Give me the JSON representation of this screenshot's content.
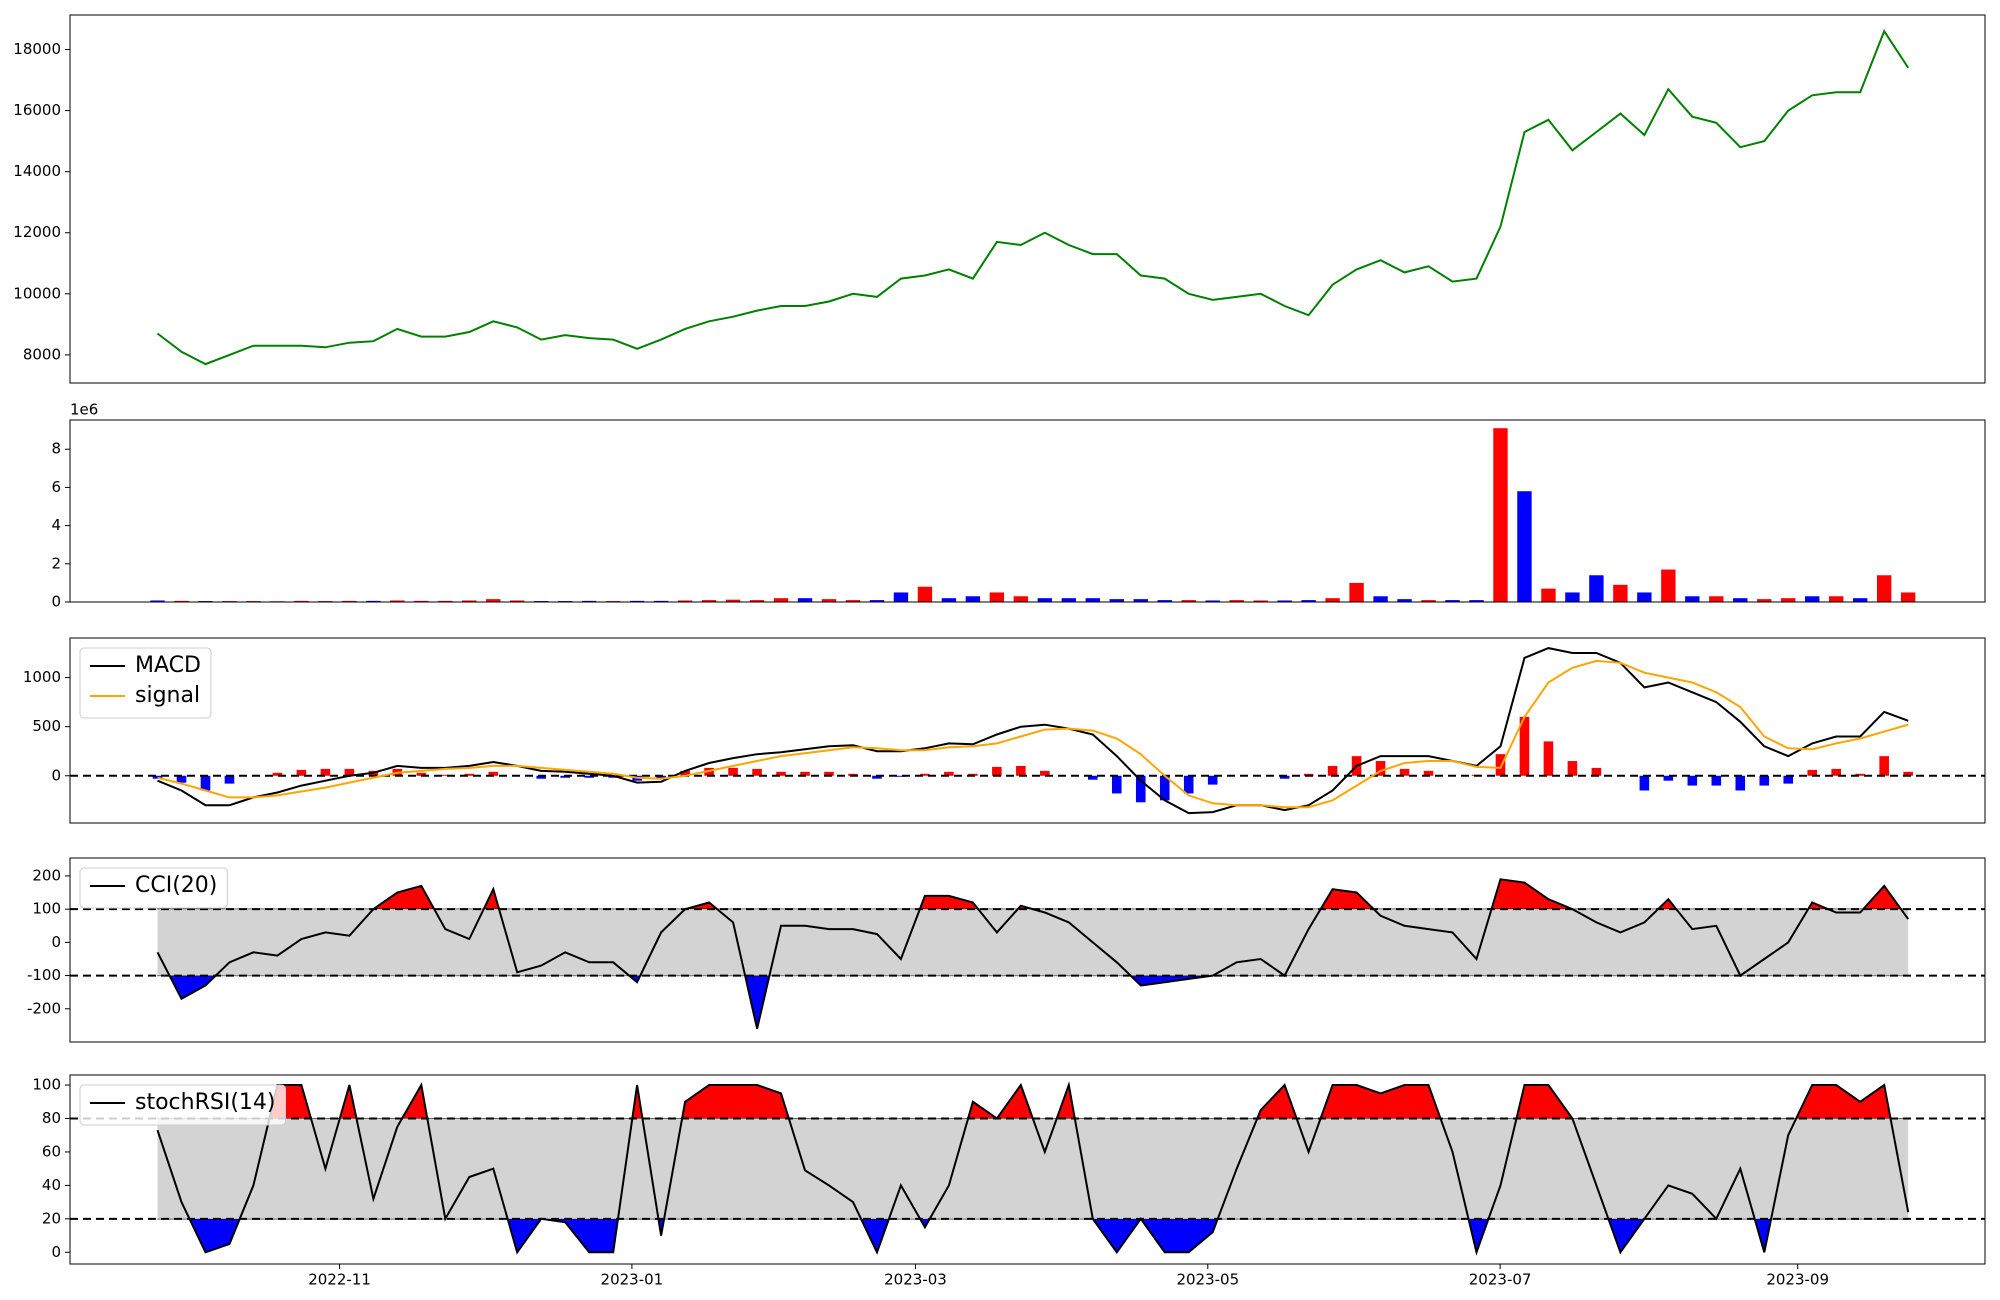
{
  "chart_data": [
    {
      "type": "line",
      "series": [
        {
          "color": "#008000",
          "values": [
            8700,
            8100,
            7700,
            8000,
            8300,
            8300,
            8300,
            8250,
            8400,
            8450,
            8850,
            8600,
            8600,
            8750,
            9100,
            8900,
            8500,
            8650,
            8550,
            8500,
            8200,
            8500,
            8850,
            9100,
            9250,
            9450,
            9600,
            9600,
            9750,
            10000,
            9900,
            10500,
            10600,
            10800,
            10500,
            11700,
            11600,
            12000,
            11600,
            11300,
            11300,
            10600,
            10500,
            10000,
            9800,
            9900,
            10000,
            9600,
            9300,
            10300,
            10800,
            11100,
            10700,
            10900,
            10400,
            10500,
            12200,
            15300,
            15700,
            14700,
            15300,
            15900,
            15200,
            16700,
            15800,
            15600,
            14800,
            15000,
            16000,
            16500,
            16600,
            16600,
            18600,
            17400
          ]
        }
      ],
      "ylim": [
        7080,
        19130
      ],
      "yticks": [
        8000,
        10000,
        12000,
        14000,
        16000,
        18000
      ]
    },
    {
      "type": "bar",
      "offset_label": "1e6",
      "values": [
        80000,
        60000,
        50000,
        50000,
        50000,
        40000,
        60000,
        50000,
        60000,
        60000,
        80000,
        60000,
        60000,
        80000,
        150000,
        80000,
        50000,
        50000,
        60000,
        50000,
        60000,
        60000,
        80000,
        100000,
        120000,
        100000,
        200000,
        200000,
        150000,
        100000,
        100000,
        500000,
        800000,
        200000,
        300000,
        500000,
        300000,
        200000,
        200000,
        200000,
        150000,
        150000,
        100000,
        100000,
        80000,
        100000,
        80000,
        80000,
        100000,
        200000,
        1000000,
        300000,
        150000,
        100000,
        100000,
        100000,
        9100000,
        5800000,
        700000,
        500000,
        1400000,
        900000,
        500000,
        1700000,
        300000,
        300000,
        200000,
        150000,
        200000,
        300000,
        300000,
        200000,
        1400000,
        500000
      ],
      "colors": [
        "blue",
        "red",
        "blue",
        "red",
        "red",
        "red",
        "red",
        "red",
        "red",
        "blue",
        "red",
        "red",
        "red",
        "red",
        "red",
        "red",
        "blue",
        "blue",
        "blue",
        "red",
        "blue",
        "blue",
        "red",
        "red",
        "red",
        "red",
        "red",
        "blue",
        "red",
        "red",
        "blue",
        "blue",
        "red",
        "blue",
        "blue",
        "red",
        "red",
        "blue",
        "blue",
        "blue",
        "blue",
        "blue",
        "blue",
        "red",
        "blue",
        "red",
        "red",
        "blue",
        "blue",
        "red",
        "red",
        "blue",
        "blue",
        "red",
        "blue",
        "blue",
        "red",
        "blue",
        "red",
        "blue",
        "blue",
        "red",
        "blue",
        "red",
        "blue",
        "red",
        "blue",
        "red",
        "red",
        "blue",
        "red",
        "blue",
        "red",
        "red"
      ],
      "ylim": [
        0,
        9530000
      ],
      "yticks": [
        0,
        {
          "value": 2000000,
          "label": "2"
        },
        {
          "value": 4000000,
          "label": "4"
        },
        {
          "value": 6000000,
          "label": "6"
        },
        {
          "value": 8000000,
          "label": "8"
        }
      ]
    },
    {
      "type": "macd",
      "legend": "upper left",
      "reference_lines": [
        0
      ],
      "series": [
        {
          "name": "MACD",
          "color": "black",
          "values": [
            -50,
            -150,
            -300,
            -300,
            -220,
            -170,
            -100,
            -50,
            0,
            30,
            100,
            80,
            80,
            100,
            140,
            100,
            50,
            40,
            20,
            0,
            -70,
            -60,
            50,
            130,
            180,
            220,
            240,
            270,
            300,
            310,
            250,
            250,
            280,
            330,
            320,
            420,
            500,
            520,
            480,
            420,
            200,
            -50,
            -250,
            -380,
            -370,
            -300,
            -300,
            -350,
            -300,
            -150,
            100,
            200,
            200,
            200,
            150,
            100,
            300,
            1200,
            1300,
            1250,
            1250,
            1150,
            900,
            950,
            850,
            750,
            550,
            300,
            200,
            330,
            400,
            400,
            650,
            560
          ]
        },
        {
          "name": "signal",
          "color": "orange",
          "values": [
            -20,
            -80,
            -150,
            -220,
            -220,
            -200,
            -160,
            -120,
            -70,
            -20,
            30,
            50,
            70,
            80,
            100,
            100,
            80,
            60,
            40,
            20,
            -20,
            -30,
            0,
            50,
            100,
            150,
            200,
            230,
            260,
            290,
            280,
            260,
            260,
            290,
            300,
            330,
            400,
            470,
            480,
            460,
            380,
            220,
            0,
            -200,
            -280,
            -300,
            -300,
            -320,
            -320,
            -250,
            -100,
            50,
            130,
            150,
            150,
            90,
            80,
            600,
            950,
            1100,
            1170,
            1150,
            1050,
            1000,
            950,
            850,
            700,
            400,
            280,
            270,
            330,
            380,
            450,
            520
          ]
        }
      ],
      "histogram": {
        "up_color": "red",
        "down_color": "blue",
        "values": [
          -30,
          -70,
          -150,
          -80,
          0,
          30,
          60,
          70,
          70,
          50,
          70,
          30,
          10,
          20,
          40,
          0,
          -30,
          -20,
          -20,
          -20,
          -50,
          -30,
          50,
          80,
          80,
          70,
          40,
          40,
          40,
          20,
          -30,
          -10,
          20,
          40,
          20,
          90,
          100,
          50,
          0,
          -40,
          -180,
          -270,
          -250,
          -180,
          -90,
          0,
          0,
          -30,
          20,
          100,
          200,
          150,
          70,
          50,
          0,
          10,
          220,
          600,
          350,
          150,
          80,
          0,
          -150,
          -50,
          -100,
          -100,
          -150,
          -100,
          -80,
          60,
          70,
          20,
          200,
          40
        ]
      },
      "ylim": [
        -481,
        1403
      ],
      "yticks": [
        0,
        500,
        1000
      ]
    },
    {
      "type": "band-oscillator",
      "legend": "upper left",
      "levels": [
        -100,
        100
      ],
      "band_color": "lightgray",
      "above_color": "red",
      "below_color": "blue",
      "series": [
        {
          "name": "CCI(20)",
          "color": "black",
          "values": [
            -30,
            -170,
            -130,
            -60,
            -30,
            -40,
            10,
            30,
            20,
            100,
            150,
            170,
            40,
            10,
            160,
            -90,
            -70,
            -30,
            -60,
            -60,
            -120,
            30,
            100,
            120,
            60,
            -260,
            50,
            50,
            40,
            40,
            25,
            -50,
            140,
            140,
            120,
            30,
            110,
            90,
            60,
            0,
            -60,
            -130,
            -120,
            -110,
            -100,
            -60,
            -50,
            -100,
            40,
            160,
            150,
            80,
            50,
            40,
            30,
            -50,
            190,
            180,
            130,
            100,
            60,
            30,
            60,
            130,
            40,
            50,
            -100,
            -50,
            0,
            120,
            90,
            90,
            170,
            70
          ]
        }
      ],
      "ylim": [
        -300,
        254
      ],
      "yticks": [
        -200,
        -100,
        0,
        100,
        200
      ]
    },
    {
      "type": "band-oscillator",
      "legend": "upper left",
      "levels": [
        20,
        80
      ],
      "band_color": "lightgray",
      "above_color": "red",
      "below_color": "blue",
      "series": [
        {
          "name": "stochRSI(14)",
          "color": "black",
          "values": [
            73,
            30,
            0,
            5,
            40,
            100,
            100,
            50,
            100,
            32,
            75,
            100,
            20,
            45,
            50,
            0,
            20,
            18,
            0,
            0,
            100,
            10,
            90,
            100,
            100,
            100,
            95,
            49,
            40,
            30,
            0,
            40,
            15,
            40,
            90,
            80,
            100,
            60,
            100,
            20,
            0,
            20,
            0,
            0,
            12,
            50,
            85,
            100,
            60,
            100,
            100,
            95,
            100,
            100,
            60,
            0,
            40,
            100,
            100,
            80,
            40,
            0,
            20,
            40,
            35,
            20,
            50,
            0,
            70,
            100,
            100,
            90,
            100,
            24
          ]
        }
      ],
      "ylim": [
        -7,
        106
      ],
      "yticks": [
        0,
        20,
        40,
        60,
        80,
        100
      ],
      "x": [
        2022.729,
        2022.7427,
        2022.7564,
        2022.7701,
        2022.7838,
        2022.7975,
        2022.8112,
        2022.8249,
        2022.8386,
        2022.8523,
        2022.866,
        2022.8797,
        2022.8934,
        2022.9071,
        2022.9208,
        2022.9345,
        2022.9482,
        2022.9619,
        2022.9756,
        2022.9893,
        2023.003,
        2023.0167,
        2023.0304,
        2023.0441,
        2023.0578,
        2023.0715,
        2023.0852,
        2023.0989,
        2023.1126,
        2023.1263,
        2023.14,
        2023.1537,
        2023.1674,
        2023.1811,
        2023.1948,
        2023.2085,
        2023.2222,
        2023.2359,
        2023.2496,
        2023.2633,
        2023.277,
        2023.2907,
        2023.3044,
        2023.3181,
        2023.3318,
        2023.3455,
        2023.3592,
        2023.3729,
        2023.3866,
        2023.4003,
        2023.414,
        2023.4277,
        2023.4414,
        2023.4551,
        2023.4688,
        2023.4825,
        2023.4962,
        2023.5099,
        2023.5236,
        2023.5373,
        2023.551,
        2023.5647,
        2023.5784,
        2023.5921,
        2023.6058,
        2023.6195,
        2023.6332,
        2023.6469,
        2023.6606,
        2023.6743,
        2023.688,
        2023.7017,
        2023.7154,
        2023.7291
      ],
      "xlim": [
        2022.679,
        2023.773
      ],
      "xticks": [
        {
          "value": 2022.833,
          "label": "2022-11"
        },
        {
          "value": 2023.0,
          "label": "2023-01"
        },
        {
          "value": 2023.162,
          "label": "2023-03"
        },
        {
          "value": 2023.329,
          "label": "2023-05"
        },
        {
          "value": 2023.496,
          "label": "2023-07"
        },
        {
          "value": 2023.666,
          "label": "2023-09"
        }
      ]
    }
  ]
}
